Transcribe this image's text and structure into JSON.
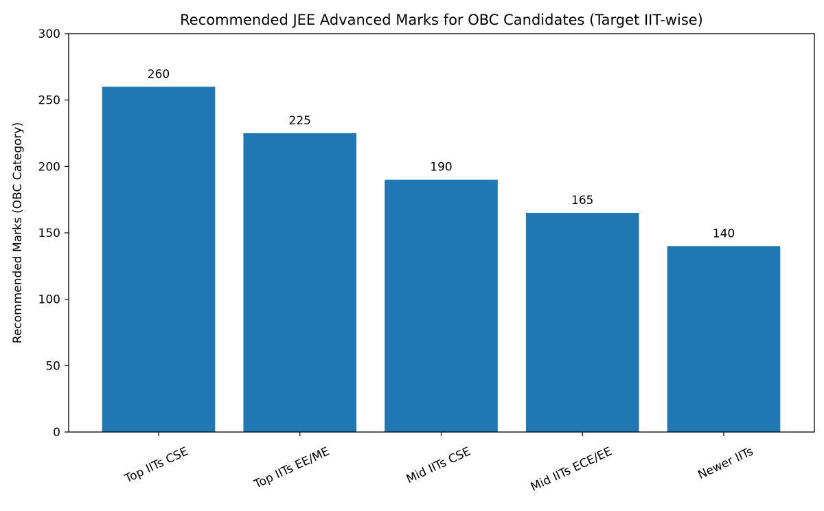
{
  "chart_data": {
    "type": "bar",
    "title": "Recommended JEE Advanced Marks for OBC Candidates (Target IIT-wise)",
    "xlabel": "",
    "ylabel": "Recommended Marks (OBC Category)",
    "categories": [
      "Top IITs CSE",
      "Top IITs EE/ME",
      "Mid IITs CSE",
      "Mid IITs ECE/EE",
      "Newer IITs"
    ],
    "values": [
      260,
      225,
      190,
      165,
      140
    ],
    "data_labels": [
      "260",
      "225",
      "190",
      "165",
      "140"
    ],
    "ylim": [
      0,
      300
    ],
    "yticks": [
      0,
      50,
      100,
      150,
      200,
      250,
      300
    ],
    "grid": false,
    "legend": null,
    "bar_color": "#1f77b4",
    "xtick_rotation": -25
  }
}
